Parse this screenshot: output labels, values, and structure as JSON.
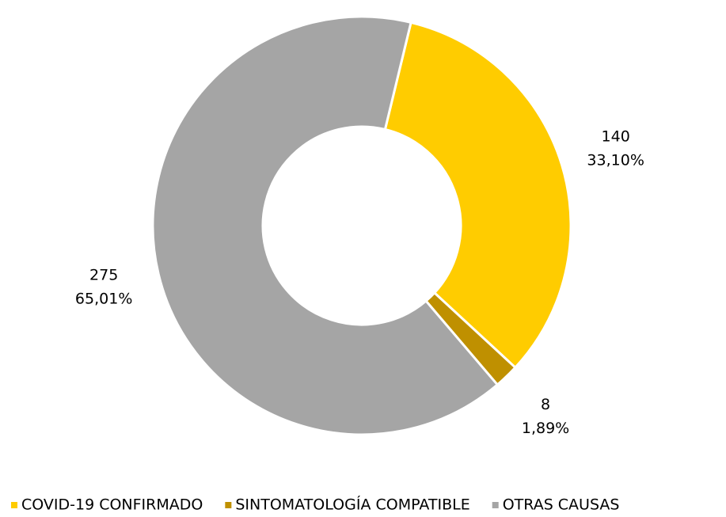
{
  "chart_data": {
    "type": "donut",
    "categories": [
      "COVID-19 CONFIRMADO",
      "SINTOMATOLOGÍA COMPATIBLE",
      "OTRAS CAUSAS"
    ],
    "values": [
      140,
      8,
      275
    ],
    "percentages": [
      33.1,
      1.89,
      65.01
    ],
    "percentage_labels": [
      "33,10%",
      "1,89%",
      "65,01%"
    ],
    "colors": [
      "#FFCC00",
      "#BF9000",
      "#A5A5A5"
    ],
    "legend": "bottom"
  }
}
